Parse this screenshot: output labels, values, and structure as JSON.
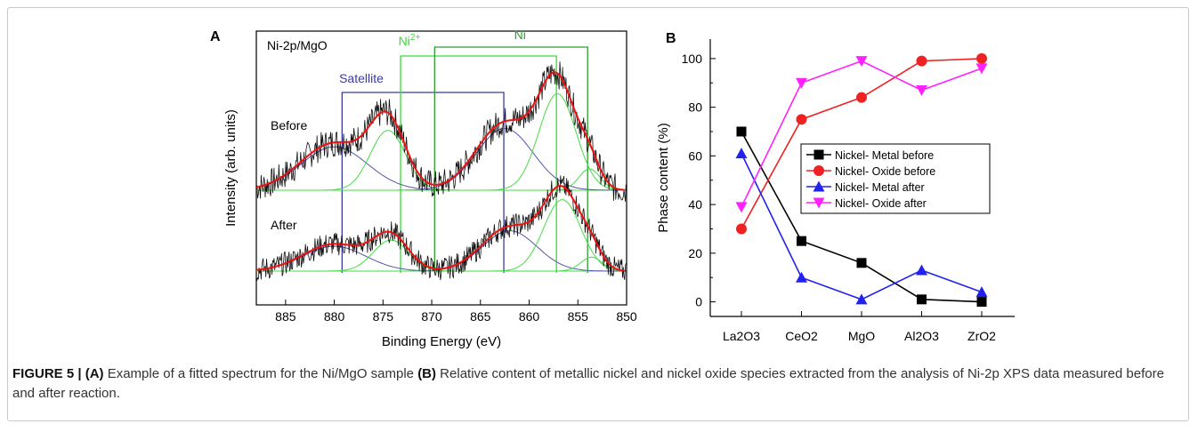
{
  "figure": {
    "caption": {
      "label": "FIGURE 5 | (A)",
      "text_a": " Example of a fitted spectrum for the Ni/MgO sample ",
      "label_b": "(B)",
      "text_b": " Relative content of metallic nickel and nickel oxide species extracted from the analysis of Ni-2p XPS data measured before and after reaction."
    }
  },
  "chart_data": [
    {
      "type": "line",
      "panel_label": "A",
      "title": "Ni-2p/MgO",
      "xlabel": "Binding Energy (eV)",
      "ylabel": "Intensity (arb. units)",
      "xlim": [
        888,
        850
      ],
      "x_ticks": [
        885,
        880,
        875,
        870,
        865,
        860,
        855,
        850
      ],
      "annotations": [
        {
          "text": "Satellite",
          "color": "#3b3b9e",
          "x_range": [
            879.2,
            862.6
          ]
        },
        {
          "text": "Ni",
          "superscript": "2+",
          "color": "#33dd33",
          "x_range": [
            873.2,
            857.2
          ]
        },
        {
          "text": "Ni",
          "color": "#2e9e2e",
          "x_range": [
            869.7,
            854.0
          ]
        }
      ],
      "series": [
        {
          "name": "Before",
          "peaks": [
            {
              "center": 880.0,
              "height": 0.45,
              "width": 3.4
            },
            {
              "center": 874.5,
              "height": 0.62,
              "width": 1.8
            },
            {
              "center": 862.5,
              "height": 0.64,
              "width": 2.9
            },
            {
              "center": 857.1,
              "height": 1.0,
              "width": 1.9
            },
            {
              "center": 853.8,
              "height": 0.22,
              "width": 1.1
            }
          ]
        },
        {
          "name": "After",
          "peaks": [
            {
              "center": 880.0,
              "height": 0.32,
              "width": 3.2
            },
            {
              "center": 874.2,
              "height": 0.4,
              "width": 1.8
            },
            {
              "center": 862.0,
              "height": 0.52,
              "width": 2.8
            },
            {
              "center": 856.6,
              "height": 0.92,
              "width": 1.9
            },
            {
              "center": 853.6,
              "height": 0.18,
              "width": 1.1
            }
          ]
        }
      ]
    },
    {
      "type": "line",
      "panel_label": "B",
      "xlabel": "",
      "ylabel": "Phase content (%)",
      "ylim": [
        -6,
        108
      ],
      "y_ticks": [
        0,
        20,
        40,
        60,
        80,
        100
      ],
      "categories": [
        "La2O3",
        "CeO2",
        "MgO",
        "Al2O3",
        "ZrO2"
      ],
      "legend_position": "center-right",
      "series": [
        {
          "name": "Nickel- Metal before",
          "color": "#000000",
          "marker": "square",
          "values": [
            70,
            25,
            16,
            1,
            0
          ]
        },
        {
          "name": "Nickel- Oxide before",
          "color": "#ee2222",
          "marker": "circle",
          "values": [
            30,
            75,
            84,
            99,
            100
          ]
        },
        {
          "name": "Nickel- Metal after",
          "color": "#2222ee",
          "marker": "triangle-up",
          "values": [
            61,
            10,
            1,
            13,
            4
          ]
        },
        {
          "name": "Nickel- Oxide after",
          "color": "#ff22ff",
          "marker": "triangle-down",
          "values": [
            39,
            90,
            99,
            87,
            96
          ]
        }
      ]
    }
  ]
}
